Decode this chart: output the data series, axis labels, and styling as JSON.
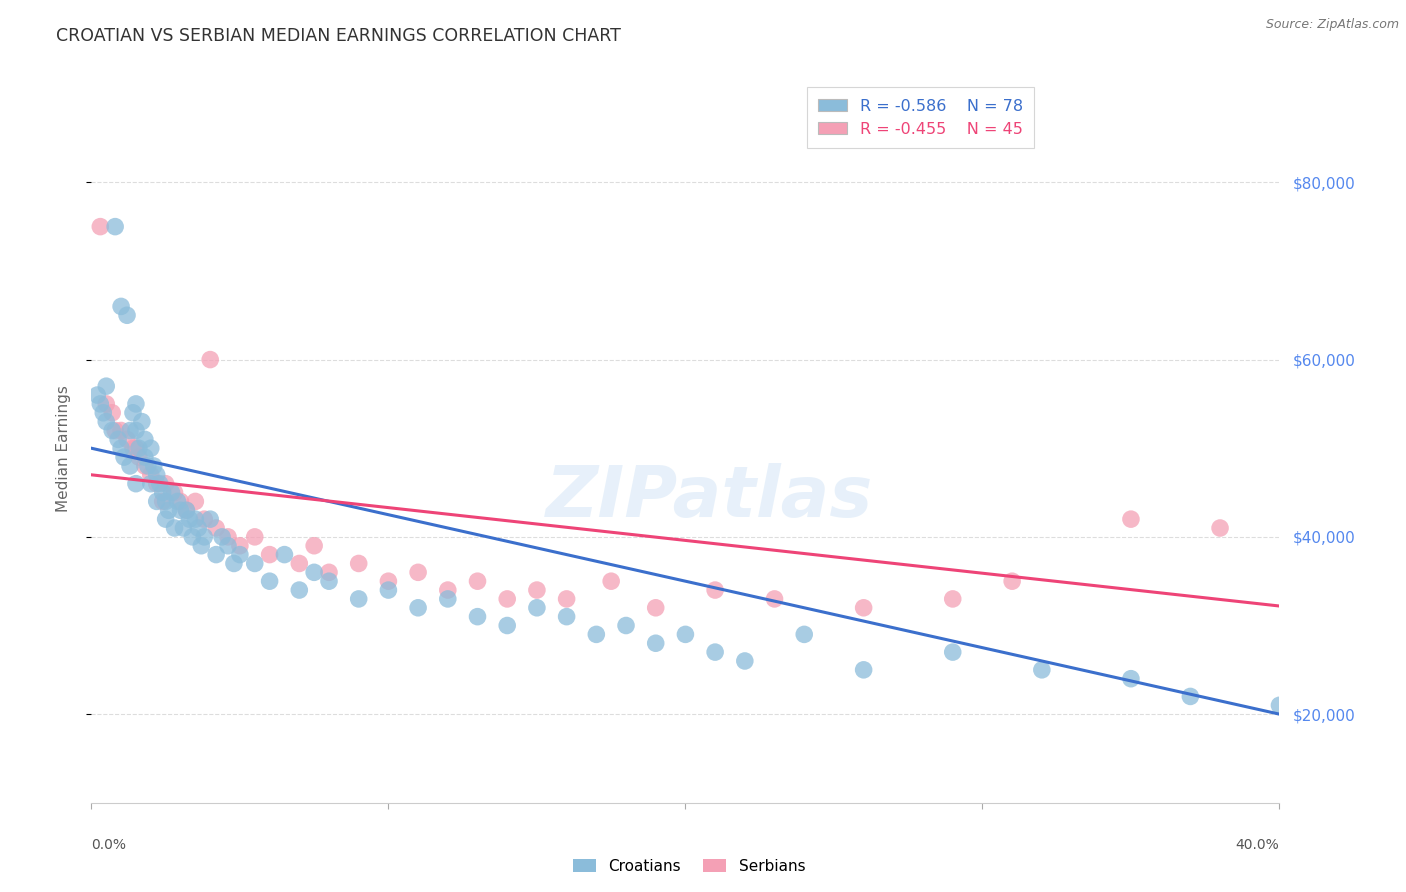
{
  "title": "CROATIAN VS SERBIAN MEDIAN EARNINGS CORRELATION CHART",
  "source": "Source: ZipAtlas.com",
  "ylabel": "Median Earnings",
  "xlim": [
    0.0,
    0.4
  ],
  "ylim": [
    10000,
    90000
  ],
  "yticks": [
    20000,
    40000,
    60000,
    80000
  ],
  "ytick_labels": [
    "$20,000",
    "$40,000",
    "$60,000",
    "$80,000"
  ],
  "watermark": "ZIPatlas",
  "legend_blue_r": "-0.586",
  "legend_blue_n": "78",
  "legend_pink_r": "-0.455",
  "legend_pink_n": "45",
  "legend_label_blue": "Croatians",
  "legend_label_pink": "Serbians",
  "blue_color": "#8BBCDA",
  "pink_color": "#F4A0B5",
  "blue_line_color": "#3B6FCC",
  "pink_line_color": "#EE4477",
  "grid_color": "#DDDDDD",
  "title_color": "#333333",
  "axis_label_color": "#666666",
  "right_ytick_color": "#5588EE",
  "blue_intercept": 50000,
  "blue_slope": -75000,
  "pink_intercept": 47000,
  "pink_slope": -37000,
  "croatians_x": [
    0.005,
    0.008,
    0.01,
    0.012,
    0.013,
    0.014,
    0.015,
    0.015,
    0.016,
    0.017,
    0.018,
    0.018,
    0.019,
    0.02,
    0.02,
    0.021,
    0.022,
    0.022,
    0.023,
    0.024,
    0.025,
    0.025,
    0.026,
    0.027,
    0.028,
    0.029,
    0.03,
    0.031,
    0.032,
    0.033,
    0.034,
    0.035,
    0.036,
    0.037,
    0.038,
    0.04,
    0.042,
    0.044,
    0.046,
    0.048,
    0.05,
    0.055,
    0.06,
    0.065,
    0.07,
    0.075,
    0.08,
    0.09,
    0.1,
    0.11,
    0.12,
    0.13,
    0.14,
    0.15,
    0.16,
    0.17,
    0.18,
    0.19,
    0.2,
    0.21,
    0.002,
    0.003,
    0.004,
    0.005,
    0.007,
    0.009,
    0.01,
    0.011,
    0.013,
    0.015,
    0.22,
    0.24,
    0.26,
    0.29,
    0.32,
    0.35,
    0.37,
    0.4
  ],
  "croatians_y": [
    57000,
    75000,
    66000,
    65000,
    52000,
    54000,
    55000,
    52000,
    50000,
    53000,
    51000,
    49000,
    48000,
    50000,
    46000,
    48000,
    47000,
    44000,
    46000,
    45000,
    44000,
    42000,
    43000,
    45000,
    41000,
    44000,
    43000,
    41000,
    43000,
    42000,
    40000,
    42000,
    41000,
    39000,
    40000,
    42000,
    38000,
    40000,
    39000,
    37000,
    38000,
    37000,
    35000,
    38000,
    34000,
    36000,
    35000,
    33000,
    34000,
    32000,
    33000,
    31000,
    30000,
    32000,
    31000,
    29000,
    30000,
    28000,
    29000,
    27000,
    56000,
    55000,
    54000,
    53000,
    52000,
    51000,
    50000,
    49000,
    48000,
    46000,
    26000,
    29000,
    25000,
    27000,
    25000,
    24000,
    22000,
    21000
  ],
  "serbians_x": [
    0.005,
    0.007,
    0.01,
    0.012,
    0.014,
    0.016,
    0.018,
    0.02,
    0.022,
    0.025,
    0.028,
    0.03,
    0.032,
    0.035,
    0.038,
    0.042,
    0.046,
    0.05,
    0.06,
    0.07,
    0.08,
    0.09,
    0.1,
    0.11,
    0.12,
    0.13,
    0.14,
    0.15,
    0.16,
    0.175,
    0.19,
    0.21,
    0.23,
    0.26,
    0.29,
    0.015,
    0.024,
    0.04,
    0.055,
    0.075,
    0.003,
    0.31,
    0.35,
    0.38,
    0.008
  ],
  "serbians_y": [
    55000,
    54000,
    52000,
    51000,
    50000,
    49000,
    48000,
    47000,
    46000,
    46000,
    45000,
    44000,
    43000,
    44000,
    42000,
    41000,
    40000,
    39000,
    38000,
    37000,
    36000,
    37000,
    35000,
    36000,
    34000,
    35000,
    33000,
    34000,
    33000,
    35000,
    32000,
    34000,
    33000,
    32000,
    33000,
    50000,
    44000,
    60000,
    40000,
    39000,
    75000,
    35000,
    42000,
    41000,
    52000
  ]
}
